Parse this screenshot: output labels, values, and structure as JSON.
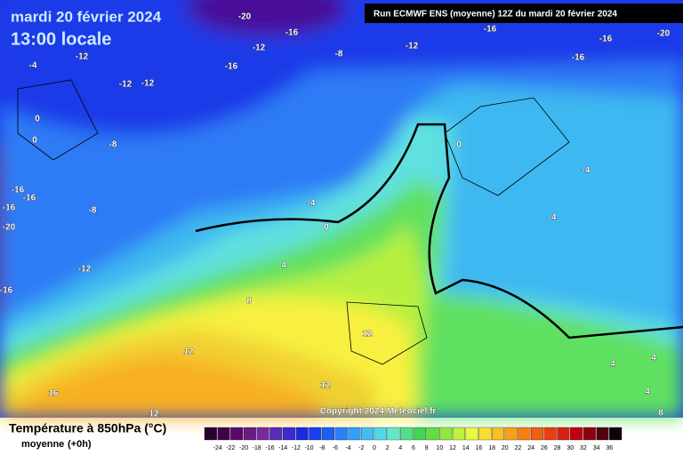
{
  "header": {
    "date": "mardi 20 février 2024",
    "time": "13:00 locale",
    "run": "Run ECMWF ENS (moyenne) 12Z du mardi 20 février 2024",
    "copyright": "Copyright 2024 Meteociel.fr"
  },
  "legend": {
    "title": "Température à 850hPa (°C)",
    "subtitle": "moyenne",
    "step": "(+0h)",
    "scale_labels": [
      -24,
      -22,
      -20,
      -18,
      -16,
      -14,
      -12,
      -10,
      -8,
      -6,
      -4,
      -2,
      0,
      2,
      4,
      6,
      8,
      10,
      12,
      14,
      16,
      18,
      20,
      22,
      24,
      26,
      28,
      30,
      32,
      34,
      36
    ]
  },
  "map_labels": [
    -20,
    -16,
    -12,
    -16,
    -8,
    -12,
    -16,
    -16,
    -20,
    -16,
    -4,
    -12,
    -12,
    -12,
    0,
    0,
    -8,
    -16,
    -16,
    -8,
    -16,
    -20,
    0,
    -4,
    0,
    -4,
    -4,
    4,
    8,
    -12,
    -16,
    12,
    12,
    12,
    16,
    12,
    4,
    4,
    4,
    8
  ]
}
